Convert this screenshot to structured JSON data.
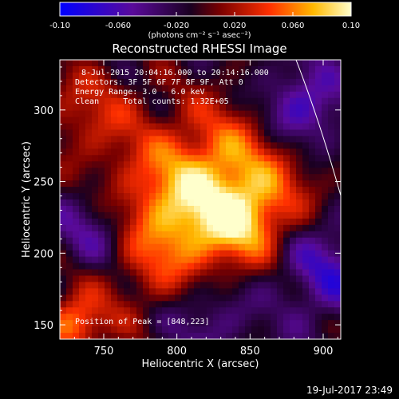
{
  "chart_data": {
    "type": "heatmap",
    "title": "Reconstructed RHESSI Image",
    "xlabel": "Heliocentric X (arcsec)",
    "ylabel": "Heliocentric Y (arcsec)",
    "xlim": [
      720,
      912
    ],
    "ylim": [
      140,
      335
    ],
    "xticks": [
      750,
      800,
      850,
      900
    ],
    "yticks": [
      150,
      200,
      250,
      300
    ],
    "colorbar": {
      "range": [
        -0.1,
        0.1
      ],
      "ticks": [
        "-0.10",
        "-0.060",
        "-0.020",
        "0.020",
        "0.060",
        "0.10"
      ],
      "units_label": "(photons cm⁻² s⁻¹ asec⁻²)"
    },
    "annotations": [
      "8-Jul-2015 20:04:16.000 to 20:14:16.000",
      "Detectors: 3F 5F 6F 7F 8F 9F, Att 0",
      "Energy Range: 3.0 - 6.0 keV",
      "Clean     Total counts: 1.32E+05"
    ],
    "peak_label": "Position of Peak = [848,223]",
    "peak": [
      848,
      223
    ],
    "footer_timestamp": "19-Jul-2017 23:49"
  }
}
